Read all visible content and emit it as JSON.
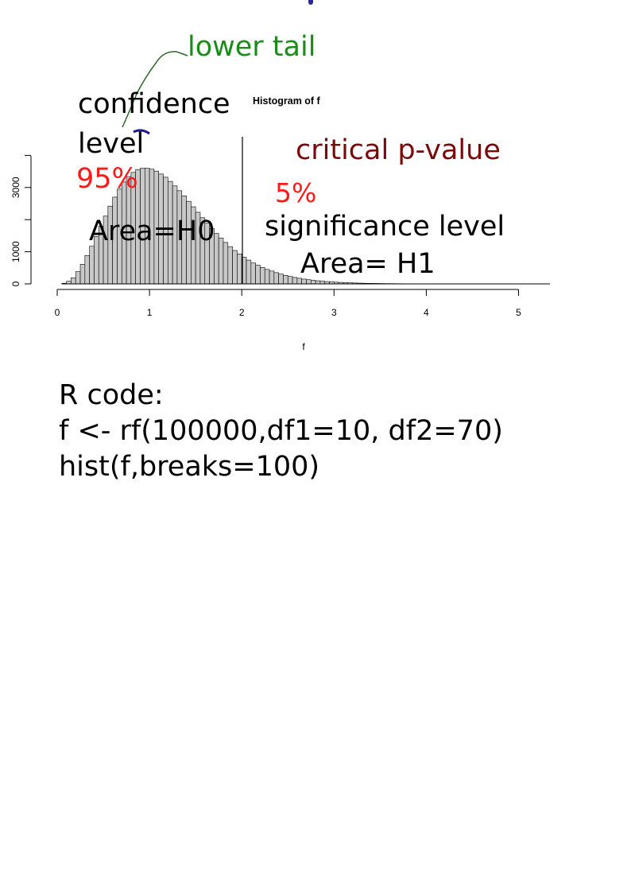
{
  "annotations": {
    "lower_tail": "lower tail",
    "confidence": "confidence",
    "level": "level",
    "pct95": "95%",
    "area_h0": "Area=H0",
    "critical": "critical p-value",
    "pct5": "5%",
    "significance": "significance level",
    "area_h1": "Area= H1"
  },
  "code": {
    "heading": "R code:",
    "line1": "f <- rf(100000,df1=10, df2=70)",
    "line2": "hist(f,breaks=100)"
  },
  "colors": {
    "bar_fill": "#c8c8c8",
    "lower_tail": "#1a8c1a",
    "pct": "#ff1a1a",
    "critical": "#7a0a0a"
  },
  "chart_data": {
    "type": "bar",
    "title": "Histogram of f",
    "xlabel": "f",
    "ylabel": "",
    "xticks": [
      0,
      1,
      2,
      3,
      4,
      5
    ],
    "yticks": [
      0,
      1000,
      3000
    ],
    "yminor": [
      2000
    ],
    "xlim": [
      0,
      5.35
    ],
    "ylim": [
      0,
      4100
    ],
    "bin_width": 0.05,
    "bin_start": 0.05,
    "critical_value": 2.0,
    "values": [
      20,
      80,
      190,
      380,
      610,
      880,
      1170,
      1480,
      1800,
      2110,
      2420,
      2700,
      2950,
      3170,
      3340,
      3470,
      3560,
      3600,
      3600,
      3570,
      3510,
      3420,
      3320,
      3190,
      3050,
      2900,
      2740,
      2570,
      2400,
      2230,
      2060,
      1890,
      1730,
      1570,
      1430,
      1290,
      1160,
      1040,
      930,
      830,
      740,
      650,
      580,
      510,
      450,
      400,
      350,
      305,
      265,
      230,
      200,
      175,
      150,
      130,
      112,
      97,
      84,
      72,
      62,
      53,
      46,
      39,
      33,
      28,
      24,
      20,
      17,
      15,
      13,
      11,
      9,
      8,
      7,
      6,
      5,
      4,
      4,
      3,
      3,
      2,
      2,
      2,
      1,
      1,
      1,
      1
    ]
  }
}
